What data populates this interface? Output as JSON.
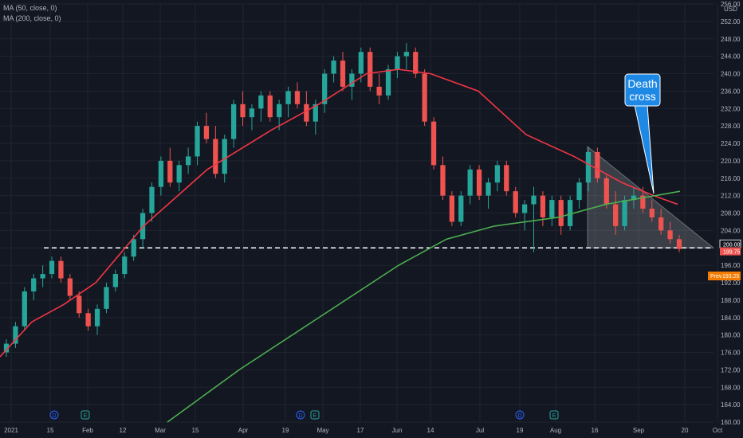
{
  "legend": {
    "ma50": "MA (50, close, 0)",
    "ma200": "MA (200, close, 0)"
  },
  "axis": {
    "currency": "USD",
    "y_ticks": [
      "256.00",
      "252.00",
      "248.00",
      "244.00",
      "240.00",
      "236.00",
      "232.00",
      "228.00",
      "224.00",
      "220.00",
      "216.00",
      "212.00",
      "208.00",
      "204.00",
      "200.00",
      "196.00",
      "192.00",
      "188.00",
      "184.00",
      "180.00",
      "176.00",
      "172.00",
      "168.00",
      "164.00",
      "160.00"
    ],
    "x_ticks": [
      "2021",
      "15",
      "Feb",
      "12",
      "Mar",
      "15",
      "Apr",
      "19",
      "May",
      "17",
      "Jun",
      "14",
      "Jul",
      "19",
      "Aug",
      "16",
      "Sep",
      "20",
      "Oct"
    ]
  },
  "annotation": {
    "line1": "Death",
    "line2": "cross"
  },
  "price_tags": {
    "level": "200.00",
    "last": "199.75",
    "prev_label": "Prev",
    "prev_value": "193.25"
  },
  "badges": [
    "D",
    "E",
    "D",
    "E",
    "D",
    "E"
  ],
  "colors": {
    "background": "#131722",
    "up": "#26a69a",
    "down": "#ef5350",
    "ma50": "#f23645",
    "ma200": "#4caf50",
    "callout": "#1e88e5",
    "grid": "#1f2430"
  },
  "chart_data": {
    "type": "candlestick",
    "ylim": [
      160,
      256
    ],
    "horizontal_level": 200,
    "series": [
      {
        "name": "MA (50, close, 0)",
        "points": [
          [
            0,
            175
          ],
          [
            40,
            183
          ],
          [
            80,
            187
          ],
          [
            120,
            192
          ],
          [
            180,
            205
          ],
          [
            260,
            218
          ],
          [
            340,
            227
          ],
          [
            400,
            233
          ],
          [
            460,
            240
          ],
          [
            500,
            241
          ],
          [
            540,
            240
          ],
          [
            600,
            236
          ],
          [
            660,
            226
          ],
          [
            720,
            221
          ],
          [
            780,
            215
          ],
          [
            820,
            212
          ],
          [
            850,
            210
          ]
        ]
      },
      {
        "name": "MA (200, close, 0)",
        "points": [
          [
            210,
            160
          ],
          [
            300,
            172
          ],
          [
            400,
            184
          ],
          [
            500,
            196
          ],
          [
            560,
            202
          ],
          [
            620,
            205
          ],
          [
            700,
            207
          ],
          [
            760,
            210
          ],
          [
            853,
            213
          ]
        ]
      }
    ],
    "candles": [
      [
        176,
        179,
        175,
        178
      ],
      [
        178,
        183,
        177,
        182
      ],
      [
        182,
        191,
        181,
        190
      ],
      [
        190,
        194,
        188,
        193
      ],
      [
        193,
        196,
        191,
        194
      ],
      [
        194,
        198,
        193,
        197
      ],
      [
        197,
        198,
        192,
        193
      ],
      [
        193,
        194,
        188,
        189
      ],
      [
        189,
        190,
        184,
        185
      ],
      [
        185,
        186,
        181,
        182
      ],
      [
        182,
        187,
        180,
        186
      ],
      [
        186,
        192,
        185,
        191
      ],
      [
        191,
        195,
        190,
        194
      ],
      [
        194,
        199,
        193,
        198
      ],
      [
        198,
        203,
        197,
        202
      ],
      [
        202,
        209,
        200,
        208
      ],
      [
        208,
        215,
        206,
        214
      ],
      [
        214,
        221,
        212,
        220
      ],
      [
        220,
        223,
        214,
        215
      ],
      [
        215,
        220,
        213,
        219
      ],
      [
        219,
        223,
        217,
        221
      ],
      [
        221,
        229,
        219,
        228
      ],
      [
        228,
        231,
        224,
        225
      ],
      [
        225,
        228,
        216,
        217
      ],
      [
        217,
        226,
        215,
        225
      ],
      [
        225,
        234,
        223,
        233
      ],
      [
        233,
        236,
        228,
        230
      ],
      [
        230,
        233,
        227,
        232
      ],
      [
        232,
        236,
        229,
        235
      ],
      [
        235,
        236,
        229,
        230
      ],
      [
        230,
        234,
        227,
        233
      ],
      [
        233,
        237,
        230,
        236
      ],
      [
        236,
        238,
        232,
        233
      ],
      [
        233,
        236,
        228,
        229
      ],
      [
        229,
        234,
        226,
        233
      ],
      [
        233,
        241,
        231,
        240
      ],
      [
        240,
        244,
        238,
        243
      ],
      [
        243,
        245,
        236,
        237
      ],
      [
        237,
        241,
        234,
        240
      ],
      [
        240,
        246,
        238,
        245
      ],
      [
        245,
        246,
        236,
        237
      ],
      [
        237,
        240,
        233,
        235
      ],
      [
        235,
        242,
        234,
        241
      ],
      [
        241,
        245,
        239,
        244
      ],
      [
        244,
        247,
        241,
        245
      ],
      [
        245,
        246,
        239,
        240
      ],
      [
        240,
        241,
        228,
        229
      ],
      [
        229,
        230,
        218,
        219
      ],
      [
        219,
        221,
        211,
        212
      ],
      [
        212,
        213,
        205,
        206
      ],
      [
        206,
        213,
        205,
        212
      ],
      [
        212,
        219,
        210,
        218
      ],
      [
        218,
        219,
        211,
        212
      ],
      [
        212,
        216,
        209,
        215
      ],
      [
        215,
        220,
        213,
        219
      ],
      [
        219,
        220,
        212,
        213
      ],
      [
        213,
        214,
        207,
        208
      ],
      [
        208,
        211,
        204,
        210
      ],
      [
        210,
        214,
        199,
        212
      ],
      [
        212,
        213,
        205,
        207
      ],
      [
        207,
        212,
        205,
        211
      ],
      [
        211,
        212,
        203,
        205
      ],
      [
        205,
        212,
        204,
        211
      ],
      [
        211,
        216,
        209,
        215
      ],
      [
        215,
        223,
        213,
        222
      ],
      [
        222,
        223,
        215,
        216
      ],
      [
        216,
        217,
        209,
        210
      ],
      [
        210,
        213,
        203,
        205
      ],
      [
        205,
        212,
        204,
        211
      ],
      [
        211,
        214,
        209,
        212
      ],
      [
        212,
        214,
        208,
        209
      ],
      [
        209,
        211,
        206,
        207
      ],
      [
        207,
        209,
        203,
        204
      ],
      [
        204,
        206,
        201,
        202
      ],
      [
        202,
        203,
        199,
        199.75
      ]
    ]
  }
}
